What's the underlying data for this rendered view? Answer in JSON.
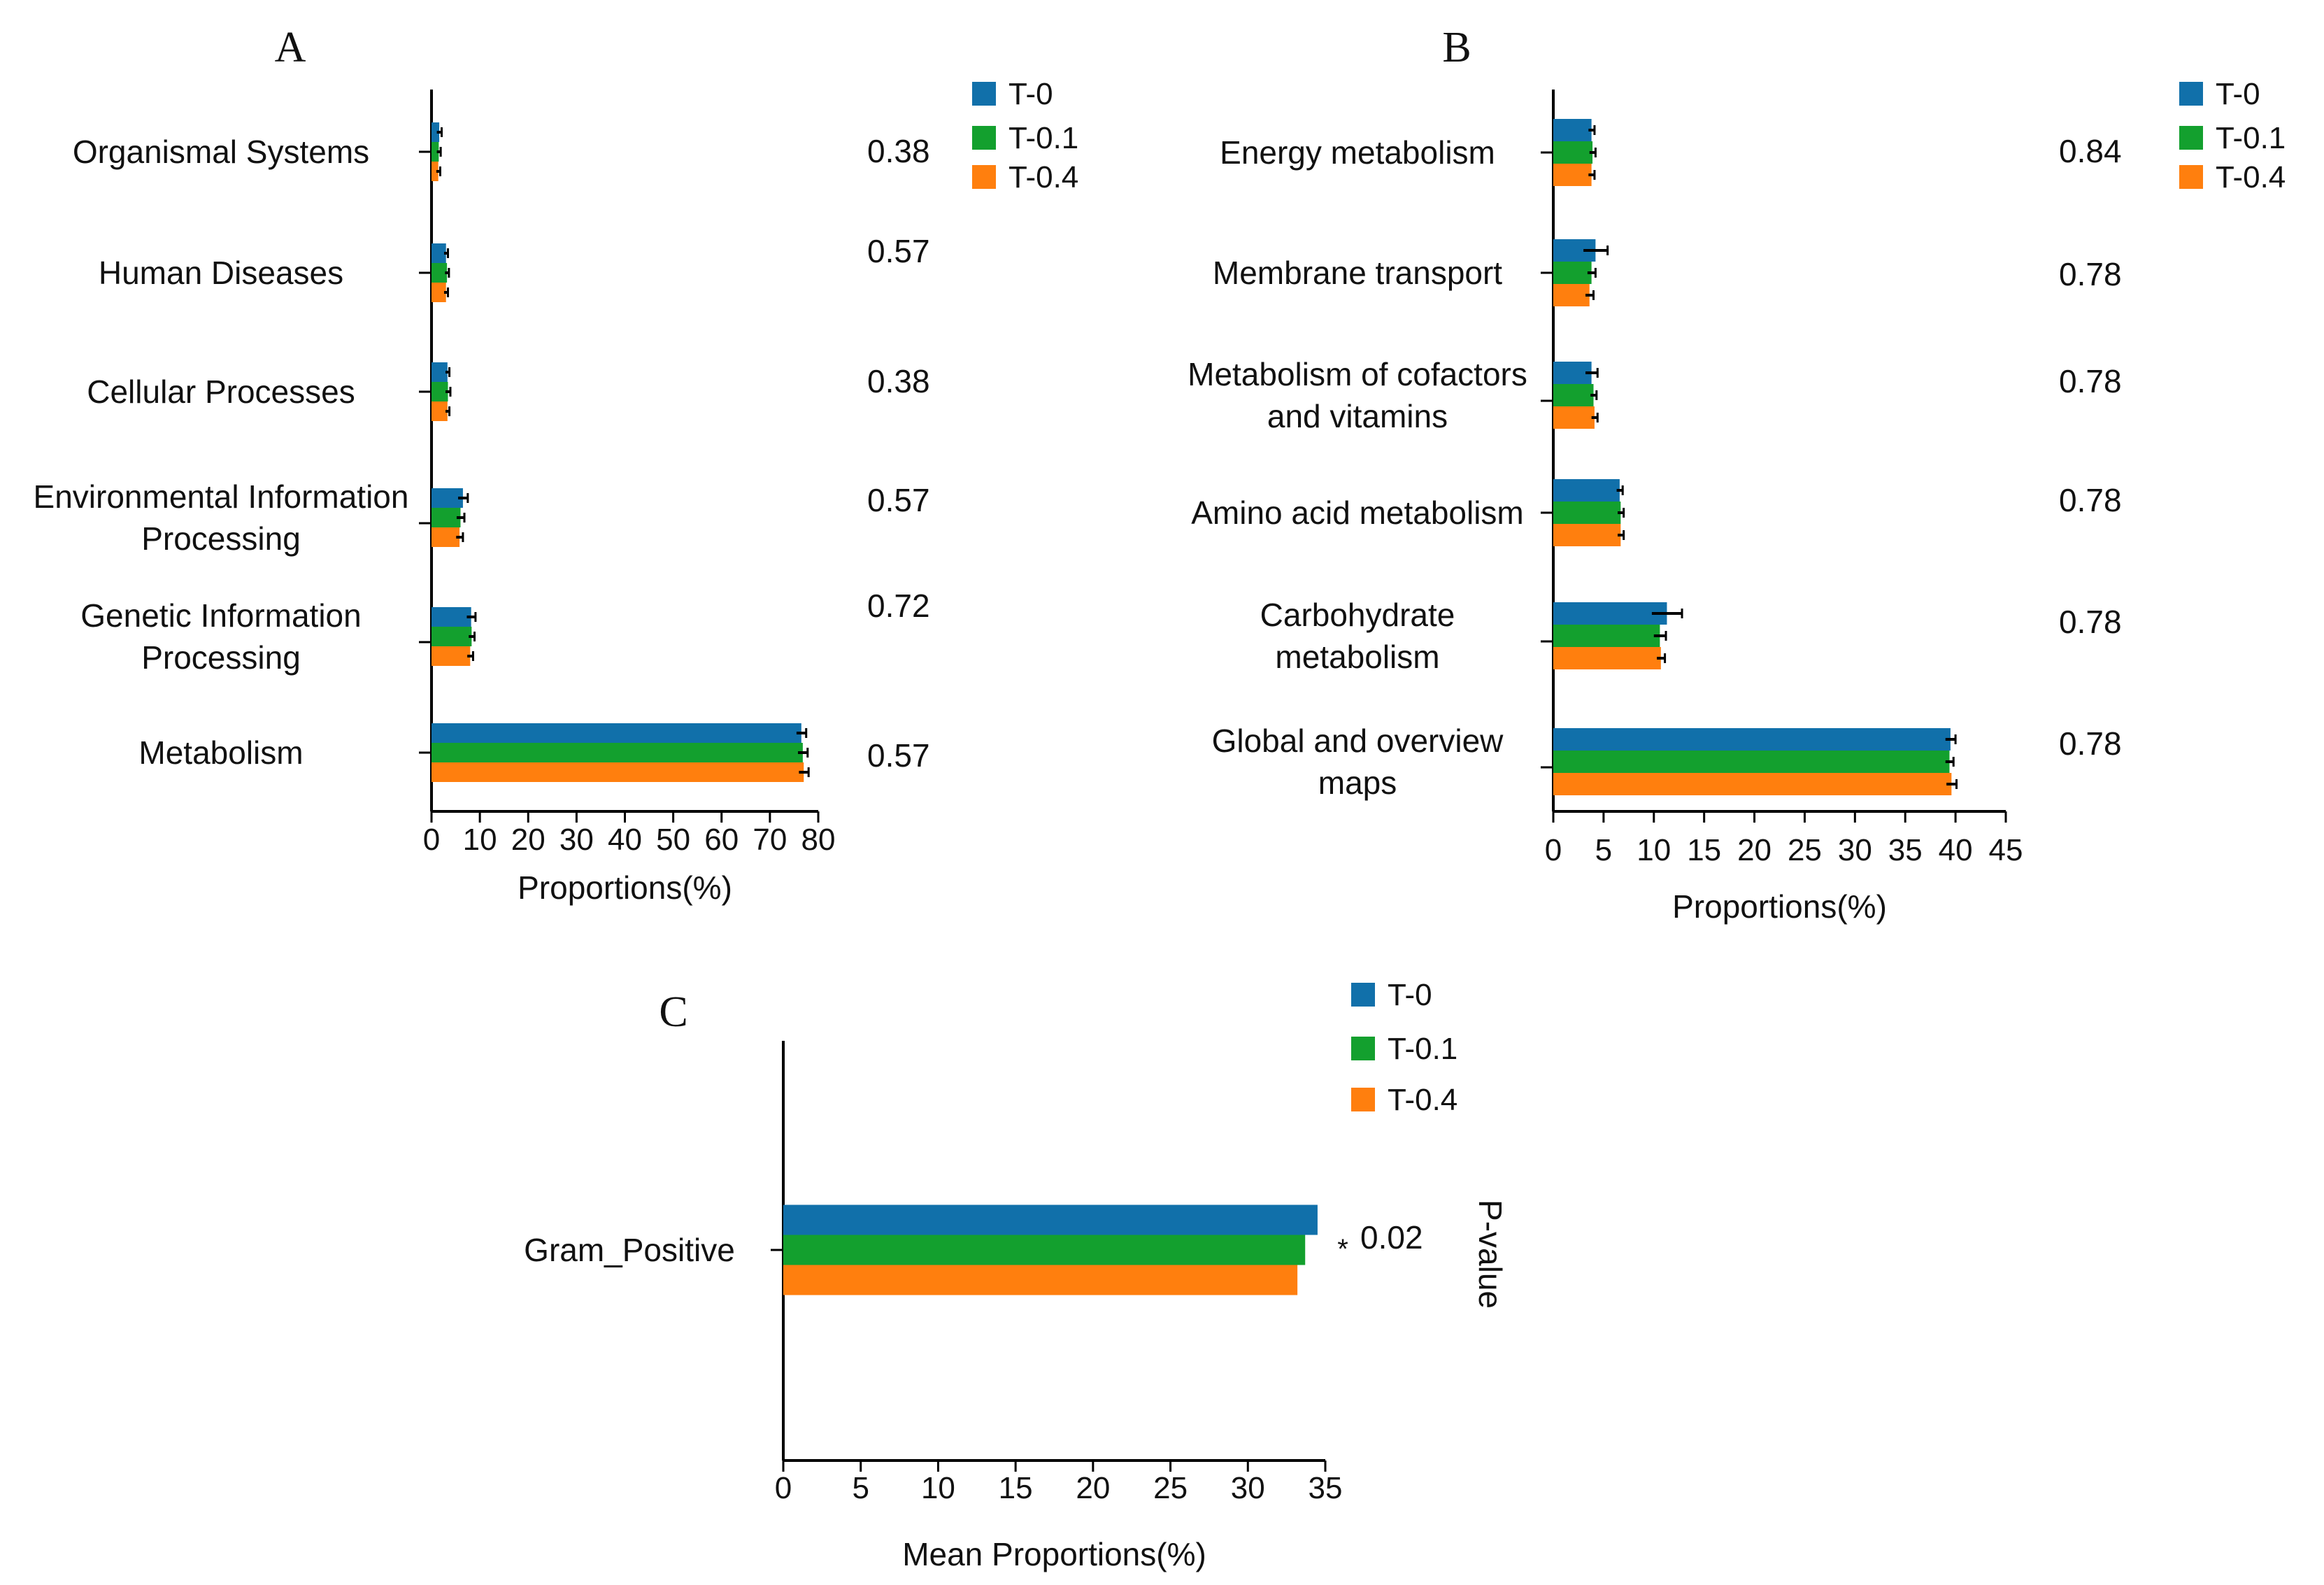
{
  "colors": {
    "T-0": "#1170aa",
    "T-0.1": "#13a02e",
    "T-0.4": "#ff7f0e",
    "axis": "#000000"
  },
  "legend": [
    "T-0",
    "T-0.1",
    "T-0.4"
  ],
  "chart_data": [
    {
      "panel": "A",
      "type": "bar",
      "orientation": "horizontal",
      "xlabel": "Proportions(%)",
      "xlim": [
        0,
        80
      ],
      "xticks": [
        0,
        10,
        20,
        30,
        40,
        50,
        60,
        70,
        80
      ],
      "categories": [
        [
          "Organismal Systems"
        ],
        [
          "Human Diseases"
        ],
        [
          "Cellular Processes"
        ],
        [
          "Environmental Information",
          "Processing"
        ],
        [
          "Genetic Information",
          "Processing"
        ],
        [
          "Metabolism"
        ]
      ],
      "p_values": [
        "0.38",
        "0.57",
        "0.38",
        "0.57",
        "0.72",
        "0.57"
      ],
      "series": [
        {
          "name": "T-0",
          "values": [
            1.6,
            3.0,
            3.3,
            6.5,
            8.2,
            76.5
          ],
          "errors": [
            0.5,
            0.4,
            0.4,
            1.0,
            0.9,
            1.0
          ]
        },
        {
          "name": "T-0.1",
          "values": [
            1.5,
            3.2,
            3.4,
            6.0,
            8.3,
            76.8
          ],
          "errors": [
            0.4,
            0.4,
            0.5,
            0.8,
            0.6,
            1.0
          ]
        },
        {
          "name": "T-0.4",
          "values": [
            1.4,
            3.0,
            3.3,
            5.8,
            8.0,
            77.0
          ],
          "errors": [
            0.4,
            0.4,
            0.4,
            0.7,
            0.6,
            1.0
          ]
        }
      ],
      "legend_position": "top-right"
    },
    {
      "panel": "B",
      "type": "bar",
      "orientation": "horizontal",
      "xlabel": "Proportions(%)",
      "xlim": [
        0,
        45
      ],
      "xticks": [
        0,
        5,
        10,
        15,
        20,
        25,
        30,
        35,
        40,
        45
      ],
      "categories": [
        [
          "Energy metabolism"
        ],
        [
          "Membrane transport"
        ],
        [
          "Metabolism of cofactors",
          "and vitamins"
        ],
        [
          "Amino acid metabolism"
        ],
        [
          "Carbohydrate",
          "metabolism"
        ],
        [
          "Global and overview",
          "maps"
        ]
      ],
      "p_values": [
        "0.84",
        "0.78",
        "0.78",
        "0.78",
        "0.78",
        "0.78"
      ],
      "series": [
        {
          "name": "T-0",
          "values": [
            3.8,
            4.2,
            3.8,
            6.6,
            11.3,
            39.5
          ],
          "errors": [
            0.3,
            1.2,
            0.6,
            0.3,
            1.5,
            0.5
          ]
        },
        {
          "name": "T-0.1",
          "values": [
            3.9,
            3.8,
            4.0,
            6.7,
            10.6,
            39.4
          ],
          "errors": [
            0.3,
            0.4,
            0.3,
            0.3,
            0.6,
            0.4
          ]
        },
        {
          "name": "T-0.4",
          "values": [
            3.8,
            3.6,
            4.1,
            6.7,
            10.7,
            39.6
          ],
          "errors": [
            0.3,
            0.4,
            0.3,
            0.3,
            0.4,
            0.5
          ]
        }
      ],
      "legend_position": "top-right"
    },
    {
      "panel": "C",
      "type": "bar",
      "orientation": "horizontal",
      "xlabel": "Mean Proportions(%)",
      "xlim": [
        0,
        35
      ],
      "xticks": [
        0,
        5,
        10,
        15,
        20,
        25,
        30,
        35
      ],
      "categories": [
        [
          "Gram_Positive"
        ]
      ],
      "p_values": [
        "0.02"
      ],
      "significance": [
        "*"
      ],
      "p_value_label": "P-value",
      "series": [
        {
          "name": "T-0",
          "values": [
            34.5
          ]
        },
        {
          "name": "T-0.1",
          "values": [
            33.7
          ]
        },
        {
          "name": "T-0.4",
          "values": [
            33.2
          ]
        }
      ],
      "legend_position": "top-right"
    }
  ]
}
